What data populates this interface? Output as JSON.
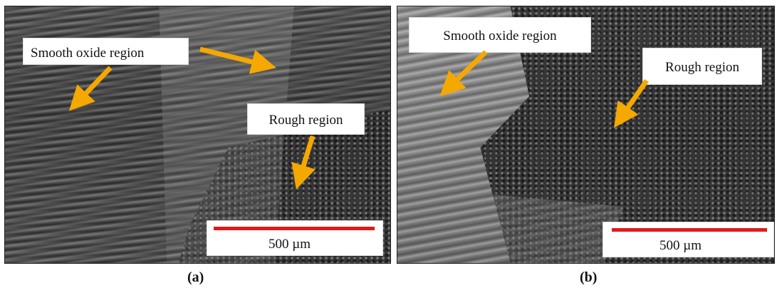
{
  "panel_a": {
    "caption": "(a)",
    "labels": {
      "smooth": "Smooth oxide region",
      "rough": "Rough region"
    },
    "scale": "500 µm"
  },
  "panel_b": {
    "caption": "(b)",
    "labels": {
      "smooth": "Smooth oxide region",
      "rough": "Rough region"
    },
    "scale": "500 µm"
  },
  "colors": {
    "arrow": "#f5a800",
    "scale_bar": "#e01a1a"
  }
}
